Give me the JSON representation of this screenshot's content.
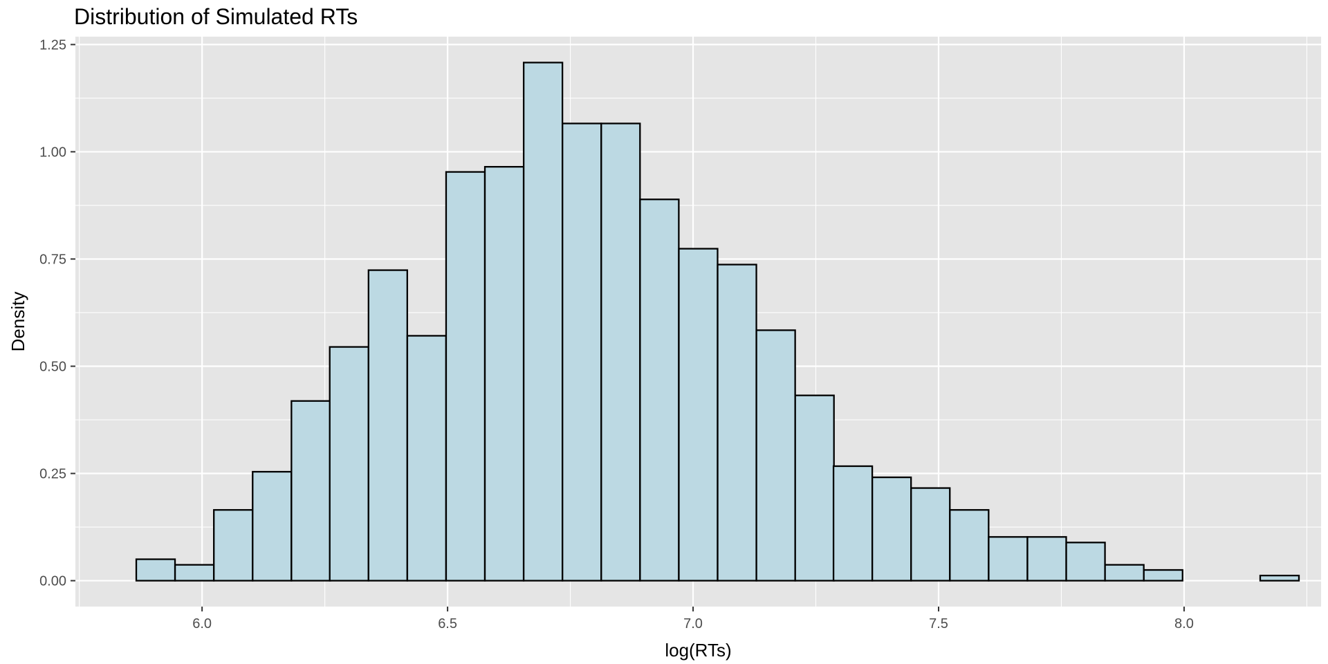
{
  "chart_data": {
    "type": "bar",
    "title": "Distribution of Simulated RTs",
    "xlabel": "log(RTs)",
    "ylabel": "Density",
    "bin_width": 0.0789,
    "bins": [
      {
        "x_start": 5.866,
        "density": 0.05
      },
      {
        "x_start": 5.945,
        "density": 0.037
      },
      {
        "x_start": 6.024,
        "density": 0.165
      },
      {
        "x_start": 6.103,
        "density": 0.254
      },
      {
        "x_start": 6.182,
        "density": 0.419
      },
      {
        "x_start": 6.26,
        "density": 0.545
      },
      {
        "x_start": 6.339,
        "density": 0.724
      },
      {
        "x_start": 6.418,
        "density": 0.571
      },
      {
        "x_start": 6.497,
        "density": 0.953
      },
      {
        "x_start": 6.576,
        "density": 0.965
      },
      {
        "x_start": 6.655,
        "density": 1.208
      },
      {
        "x_start": 6.734,
        "density": 1.066
      },
      {
        "x_start": 6.813,
        "density": 1.066
      },
      {
        "x_start": 6.892,
        "density": 0.889
      },
      {
        "x_start": 6.971,
        "density": 0.774
      },
      {
        "x_start": 7.05,
        "density": 0.737
      },
      {
        "x_start": 7.129,
        "density": 0.584
      },
      {
        "x_start": 7.208,
        "density": 0.432
      },
      {
        "x_start": 7.286,
        "density": 0.267
      },
      {
        "x_start": 7.365,
        "density": 0.241
      },
      {
        "x_start": 7.444,
        "density": 0.216
      },
      {
        "x_start": 7.523,
        "density": 0.165
      },
      {
        "x_start": 7.602,
        "density": 0.102
      },
      {
        "x_start": 7.681,
        "density": 0.102
      },
      {
        "x_start": 7.76,
        "density": 0.089
      },
      {
        "x_start": 7.839,
        "density": 0.037
      },
      {
        "x_start": 7.918,
        "density": 0.025
      },
      {
        "x_start": 7.997,
        "density": 0.0
      },
      {
        "x_start": 8.076,
        "density": 0.0
      },
      {
        "x_start": 8.155,
        "density": 0.012
      }
    ],
    "xlim": [
      5.742,
      8.279
    ],
    "ylim": [
      -0.0604,
      1.2684
    ],
    "x_ticks": [
      6.0,
      6.5,
      7.0,
      7.5,
      8.0
    ],
    "x_tick_labels": [
      "6.0",
      "6.5",
      "7.0",
      "7.5",
      "8.0"
    ],
    "y_ticks": [
      0.0,
      0.25,
      0.5,
      0.75,
      1.0,
      1.25
    ],
    "y_tick_labels": [
      "0.00",
      "0.25",
      "0.50",
      "0.75",
      "1.00",
      "1.25"
    ],
    "grid": true,
    "legend": "none"
  },
  "colors": {
    "panel_background": "#e5e5e5",
    "grid_line": "#ffffff",
    "bar_fill": "#bcd9e3",
    "bar_outline": "#000000",
    "tick_text": "#4d4d4d",
    "axis_text": "#000000"
  }
}
